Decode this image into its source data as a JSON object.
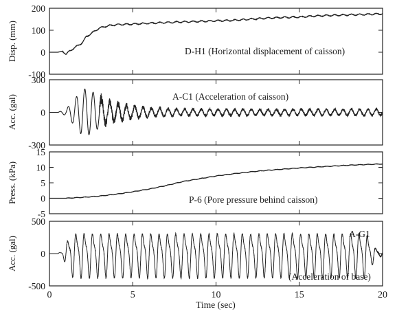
{
  "chart_data": [
    {
      "type": "line",
      "ylabel": "Disp. (mm)",
      "annotation": "D-H1 (Horizontal displacement of caisson)",
      "xlim": [
        0,
        20
      ],
      "ylim": [
        -100,
        200
      ],
      "yticks": [
        "200",
        "100",
        "0",
        "-100"
      ],
      "yticks_values": [
        200,
        100,
        0,
        -100
      ],
      "x": [
        0,
        0.5,
        0.8,
        1.0,
        1.2,
        1.5,
        1.8,
        2.0,
        2.2,
        2.5,
        2.8,
        3.0,
        3.5,
        4.0,
        5,
        6,
        7,
        8,
        9,
        10,
        11,
        12,
        13,
        14,
        15,
        16,
        17,
        18,
        19,
        20
      ],
      "y": [
        0,
        0,
        5,
        -10,
        5,
        20,
        35,
        45,
        70,
        85,
        100,
        110,
        120,
        125,
        128,
        132,
        135,
        138,
        140,
        143,
        145,
        150,
        155,
        158,
        160,
        165,
        168,
        170,
        172,
        175
      ]
    },
    {
      "type": "line",
      "ylabel": "Acc. (gal)",
      "annotation": "A-C1 (Acceleration of caisson)",
      "xlim": [
        0,
        20
      ],
      "ylim": [
        -300,
        300
      ],
      "yticks": [
        "300",
        "0",
        "-300"
      ],
      "yticks_values": [
        300,
        0,
        -300
      ],
      "envelope_t": [
        0,
        0.5,
        1.0,
        1.5,
        2.0,
        2.5,
        3.0,
        3.5,
        4.0,
        5.0,
        6.0,
        8.0,
        12.0,
        20.0
      ],
      "envelope_amp": [
        0,
        0,
        30,
        120,
        220,
        200,
        140,
        100,
        80,
        55,
        40,
        30,
        28,
        28
      ],
      "dominant_period": 0.5
    },
    {
      "type": "line",
      "ylabel": "Press. (kPa)",
      "annotation": "P-6 (Pore pressure behind caisson)",
      "xlim": [
        0,
        20
      ],
      "ylim": [
        -5,
        15
      ],
      "yticks": [
        "15",
        "10",
        "5",
        "0",
        "-5"
      ],
      "yticks_values": [
        15,
        10,
        5,
        0,
        -5
      ],
      "x": [
        0,
        1,
        2,
        3,
        4,
        5,
        6,
        7,
        8,
        9,
        10,
        11,
        12,
        13,
        14,
        15,
        16,
        17,
        18,
        19,
        20
      ],
      "y": [
        0,
        0,
        0.3,
        0.7,
        1.3,
        2.1,
        3.0,
        4.1,
        5.4,
        6.3,
        7.2,
        7.9,
        8.5,
        9.0,
        9.4,
        9.8,
        10.1,
        10.4,
        10.7,
        10.9,
        11.1
      ]
    },
    {
      "type": "line",
      "ylabel": "Acc. (gal)",
      "annotation": "A-G1",
      "annotation2": "(Acceleration of base)",
      "xlim": [
        0,
        20
      ],
      "ylim": [
        -500,
        500
      ],
      "yticks": [
        "500",
        "0",
        "-500"
      ],
      "yticks_values": [
        500,
        0,
        -500
      ],
      "xlabel": "Time (sec)",
      "xticks": [
        "0",
        "5",
        "10",
        "15",
        "20"
      ],
      "xticks_values": [
        0,
        5,
        10,
        15,
        20
      ],
      "envelope_t": [
        0,
        0.5,
        0.8,
        1.0,
        1.3,
        1.6,
        19.0,
        19.5,
        20.0
      ],
      "envelope_amp": [
        0,
        0,
        60,
        200,
        380,
        400,
        400,
        120,
        30
      ],
      "dominant_period": 0.5
    }
  ]
}
